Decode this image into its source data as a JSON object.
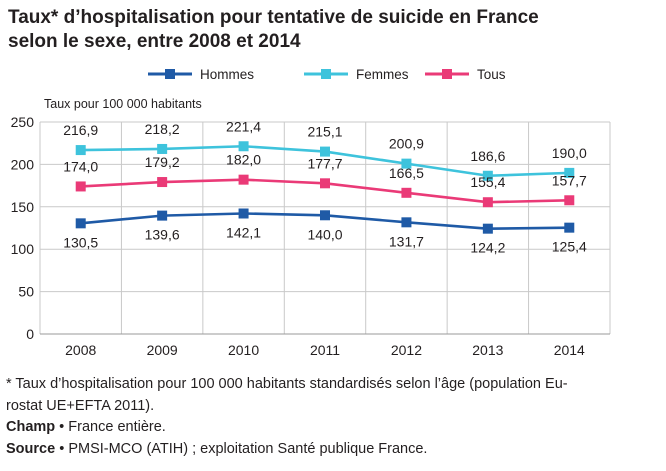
{
  "title_line1": "Taux* d’hospitalisation pour tentative de suicide en France",
  "title_line2": "selon le sexe, entre 2008 et 2014",
  "chart_data": {
    "type": "line",
    "x": [
      "2008",
      "2009",
      "2010",
      "2011",
      "2012",
      "2013",
      "2014"
    ],
    "ylabel": "Taux pour 100 000 habitants",
    "ylim": [
      0,
      250
    ],
    "yticks": [
      "0",
      "50",
      "100",
      "150",
      "200",
      "250"
    ],
    "grid": true,
    "legend_position": "top-center",
    "series": [
      {
        "name": "Hommes",
        "color": "#1f5aa6",
        "marker": "square",
        "values": [
          130.5,
          139.6,
          142.1,
          140.0,
          131.7,
          124.2,
          125.4
        ],
        "labels": [
          "130,5",
          "139,6",
          "142,1",
          "140,0",
          "131,7",
          "124,2",
          "125,4"
        ]
      },
      {
        "name": "Femmes",
        "color": "#3ec3dc",
        "marker": "square",
        "values": [
          216.9,
          218.2,
          221.4,
          215.1,
          200.9,
          186.6,
          190.0
        ],
        "labels": [
          "216,9",
          "218,2",
          "221,4",
          "215,1",
          "200,9",
          "186,6",
          "190,0"
        ]
      },
      {
        "name": "Tous",
        "color": "#ea3a77",
        "marker": "square",
        "values": [
          174.0,
          179.2,
          182.0,
          177.7,
          166.5,
          155.4,
          157.7
        ],
        "labels": [
          "174,0",
          "179,2",
          "182,0",
          "177,7",
          "166,5",
          "155,4",
          "157,7"
        ]
      }
    ]
  },
  "notes": {
    "footnote": "* Taux d’hospitalisation pour 100 000 habitants standardisés selon l’âge (population Eu-rostat UE+EFTA 2011).",
    "footnote_line1": "* Taux d’hospitalisation pour 100 000 habitants standardisés selon l’âge (population Eu-",
    "footnote_line2": "rostat UE+EFTA 2011).",
    "champ_label": "Champ",
    "champ_text": "France entière.",
    "source_label": "Source",
    "source_text": "PMSI-MCO (ATIH) ; exploitation Santé publique France."
  }
}
